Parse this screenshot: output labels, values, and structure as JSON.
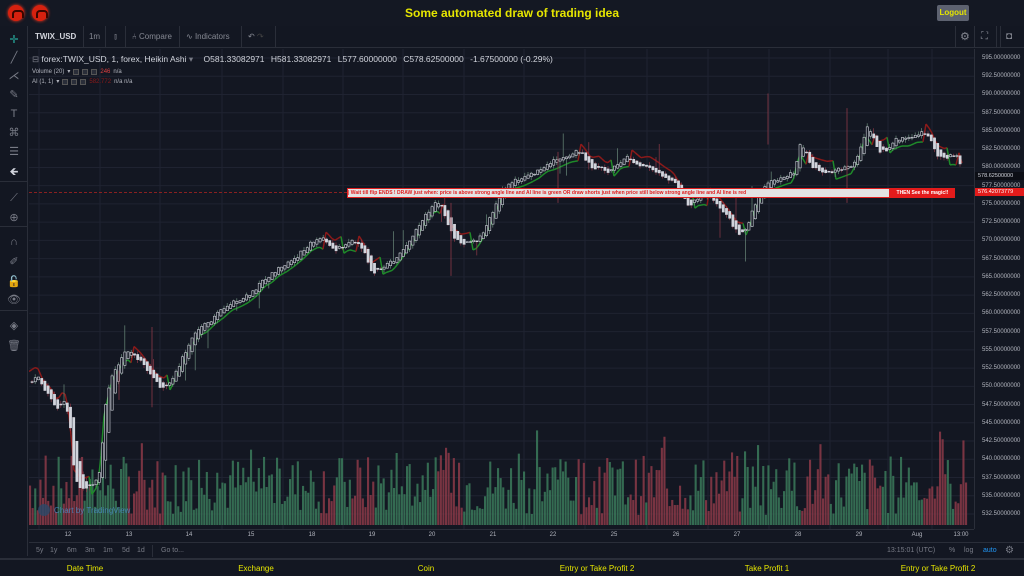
{
  "header": {
    "title": "Some automated draw of trading idea",
    "logout_label": "Logout",
    "logos": [
      "logo-icon",
      "logo-icon"
    ]
  },
  "toolbar": {
    "symbol": "TWIX_USD",
    "interval": "1m",
    "chart_type_icon": "candles-icon",
    "compare_label": "Compare",
    "indicators_label": "Indicators",
    "undo_icon": "undo-icon",
    "redo_icon": "redo-icon",
    "right_icons": [
      "settings-icon",
      "fullscreen-icon",
      "camera-icon"
    ]
  },
  "left_tools": [
    {
      "name": "crosshair-icon",
      "glyph": "✛"
    },
    {
      "name": "trend-line-icon",
      "glyph": "╱"
    },
    {
      "name": "pitchfork-icon",
      "glyph": "⋌"
    },
    {
      "name": "brush-icon",
      "glyph": "✎"
    },
    {
      "name": "text-icon",
      "glyph": "T"
    },
    {
      "name": "pattern-icon",
      "glyph": "⌘"
    },
    {
      "name": "prediction-icon",
      "glyph": "☰"
    },
    {
      "name": "back-arrow-icon",
      "glyph": "🡸"
    },
    {
      "name": "ruler-icon",
      "glyph": "⟋"
    },
    {
      "name": "zoom-in-icon",
      "glyph": "⊕"
    },
    {
      "name": "magnet-icon",
      "glyph": "∩"
    },
    {
      "name": "lock-drawing-icon",
      "glyph": "✐"
    },
    {
      "name": "lock-icon",
      "glyph": "🔓"
    },
    {
      "name": "eye-icon",
      "glyph": "👁"
    },
    {
      "name": "layers-icon",
      "glyph": "◈"
    },
    {
      "name": "trash-icon",
      "glyph": "🗑"
    }
  ],
  "legend": {
    "series_title": "forex:TWIX_USD, 1, forex, Heikin Ashi",
    "open": "O581.33082971",
    "high": "H581.33082971",
    "low": "L577.60000000",
    "close": "C578.62500000",
    "change": "-1.67500000 (-0.29%)",
    "volume_label": "Volume (20)",
    "volume_value": "246",
    "volume_extra": "n/a",
    "ai_label": "AI (1, 1)",
    "ai_value": "582.772",
    "ai_extra": "n/a  n/a"
  },
  "banner": {
    "text": "|          Wait till flip ENDS  !   DRAW just when:  price is above strong angle line and AI line is green          OR          draw shorts just when price still below strong angle line and AI line is red",
    "cta": "THEN See the magic!!"
  },
  "price_tags": {
    "last": "578.62500000",
    "line": "576.42073779"
  },
  "watermark": "Chart by TradingView",
  "bottom_bar": {
    "ranges": [
      "5y",
      "1y",
      "6m",
      "3m",
      "1m",
      "5d",
      "1d"
    ],
    "goto": "Go to...",
    "clock": "13:15:01 (UTC)",
    "percent": "%",
    "log": "log",
    "auto": "auto"
  },
  "footer": {
    "labels": [
      "Date Time",
      "Exchange",
      "Coin",
      "Entry or Take Profit 2",
      "Take Profit 1",
      "Entry or Take Profit 2"
    ]
  },
  "colors": {
    "background": "#131722",
    "up_candle": "#d1d4dc",
    "down_candle": "#131722",
    "ai_green": "#1f8a2a",
    "ai_red": "#8b1a1a",
    "vol_up": "#3b7a5a",
    "vol_down": "#8c3a48",
    "title_yellow": "#e6e600",
    "banner_red": "#e31b1b"
  },
  "chart_data": {
    "type": "candlestick",
    "title": "forex:TWIX_USD, 1, forex, Heikin Ashi",
    "xlabel": "",
    "ylabel": "Price",
    "ylim": [
      531.0,
      596.5
    ],
    "x_ticks": [
      "12",
      "13",
      "14",
      "15",
      "18",
      "19",
      "20",
      "21",
      "22",
      "25",
      "26",
      "27",
      "28",
      "29",
      "Aug",
      "13:00"
    ],
    "y_ticks": [
      "595.00000000",
      "592.50000000",
      "590.00000000",
      "587.50000000",
      "585.00000000",
      "582.50000000",
      "580.00000000",
      "577.50000000",
      "575.00000000",
      "572.50000000",
      "570.00000000",
      "567.50000000",
      "565.00000000",
      "562.50000000",
      "560.00000000",
      "557.50000000",
      "555.00000000",
      "552.50000000",
      "550.00000000",
      "547.50000000",
      "545.00000000",
      "542.50000000",
      "540.00000000",
      "537.50000000",
      "535.00000000",
      "532.50000000"
    ],
    "close_path": [
      [
        0,
        550.5
      ],
      [
        8,
        551.2
      ],
      [
        15,
        549.0
      ],
      [
        22,
        548.2
      ],
      [
        28,
        546.5
      ],
      [
        35,
        548.0
      ],
      [
        40,
        545.0
      ],
      [
        45,
        537.0
      ],
      [
        52,
        535.8
      ],
      [
        58,
        536.0
      ],
      [
        64,
        536.3
      ],
      [
        70,
        538.0
      ],
      [
        75,
        547.0
      ],
      [
        82,
        551.5
      ],
      [
        90,
        553.5
      ],
      [
        98,
        554.8
      ],
      [
        106,
        553.8
      ],
      [
        112,
        553.0
      ],
      [
        120,
        551.5
      ],
      [
        128,
        550.0
      ],
      [
        135,
        549.6
      ],
      [
        140,
        550.3
      ],
      [
        148,
        552.5
      ],
      [
        155,
        554.5
      ],
      [
        162,
        556.5
      ],
      [
        170,
        558.0
      ],
      [
        178,
        558.5
      ],
      [
        186,
        559.6
      ],
      [
        195,
        560.5
      ],
      [
        203,
        561.5
      ],
      [
        212,
        562.0
      ],
      [
        220,
        562.6
      ],
      [
        228,
        563.5
      ],
      [
        236,
        564.8
      ],
      [
        242,
        565.2
      ],
      [
        250,
        566.2
      ],
      [
        258,
        566.8
      ],
      [
        266,
        567.6
      ],
      [
        274,
        568.5
      ],
      [
        282,
        569.6
      ],
      [
        290,
        570.2
      ],
      [
        298,
        569.5
      ],
      [
        305,
        568.4
      ],
      [
        312,
        569.0
      ],
      [
        320,
        569.8
      ],
      [
        328,
        569.5
      ],
      [
        335,
        568.0
      ],
      [
        342,
        565.3
      ],
      [
        349,
        566.0
      ],
      [
        356,
        566.6
      ],
      [
        364,
        567.0
      ],
      [
        372,
        568.4
      ],
      [
        380,
        570.0
      ],
      [
        388,
        571.6
      ],
      [
        396,
        573.5
      ],
      [
        404,
        574.8
      ],
      [
        410,
        575.2
      ],
      [
        416,
        572.5
      ],
      [
        424,
        570.2
      ],
      [
        432,
        569.3
      ],
      [
        440,
        569.5
      ],
      [
        448,
        570.0
      ],
      [
        455,
        571.6
      ],
      [
        462,
        573.3
      ],
      [
        470,
        576.0
      ],
      [
        478,
        577.8
      ],
      [
        486,
        578.2
      ],
      [
        494,
        578.5
      ],
      [
        502,
        579.0
      ],
      [
        510,
        579.6
      ],
      [
        518,
        580.5
      ],
      [
        526,
        580.8
      ],
      [
        534,
        581.3
      ],
      [
        542,
        581.8
      ],
      [
        550,
        582.0
      ],
      [
        556,
        581.0
      ],
      [
        562,
        579.8
      ],
      [
        570,
        580.0
      ],
      [
        578,
        579.0
      ],
      [
        586,
        580.0
      ],
      [
        592,
        581.0
      ],
      [
        600,
        581.2
      ],
      [
        606,
        580.5
      ],
      [
        612,
        579.8
      ],
      [
        620,
        580.0
      ],
      [
        628,
        579.3
      ],
      [
        636,
        578.5
      ],
      [
        644,
        577.8
      ],
      [
        652,
        576.0
      ],
      [
        660,
        574.5
      ],
      [
        668,
        575.8
      ],
      [
        676,
        576.0
      ],
      [
        684,
        575.4
      ],
      [
        692,
        574.0
      ],
      [
        700,
        572.6
      ],
      [
        708,
        571.0
      ],
      [
        714,
        570.8
      ],
      [
        720,
        572.8
      ],
      [
        726,
        575.3
      ],
      [
        734,
        577.2
      ],
      [
        742,
        578.0
      ],
      [
        750,
        578.4
      ],
      [
        758,
        578.8
      ],
      [
        764,
        579.0
      ],
      [
        770,
        583.0
      ],
      [
        776,
        581.8
      ],
      [
        782,
        580.0
      ],
      [
        790,
        579.6
      ],
      [
        798,
        579.3
      ],
      [
        806,
        579.4
      ],
      [
        814,
        579.8
      ],
      [
        822,
        580.2
      ],
      [
        830,
        582.2
      ],
      [
        836,
        585.3
      ],
      [
        842,
        584.6
      ],
      [
        848,
        582.0
      ],
      [
        856,
        582.3
      ],
      [
        864,
        583.5
      ],
      [
        872,
        584.0
      ],
      [
        880,
        584.0
      ],
      [
        888,
        584.5
      ],
      [
        896,
        584.6
      ],
      [
        902,
        583.5
      ],
      [
        908,
        581.5
      ],
      [
        916,
        581.0
      ],
      [
        922,
        581.5
      ],
      [
        928,
        581.4
      ],
      [
        934,
        578.6
      ]
    ],
    "volume_series": {
      "name": "Volume (20)",
      "last_value": 246
    },
    "ai_series": {
      "name": "AI (1, 1)",
      "last_value": 582.772
    },
    "horizontal_line": 576.42073779
  }
}
